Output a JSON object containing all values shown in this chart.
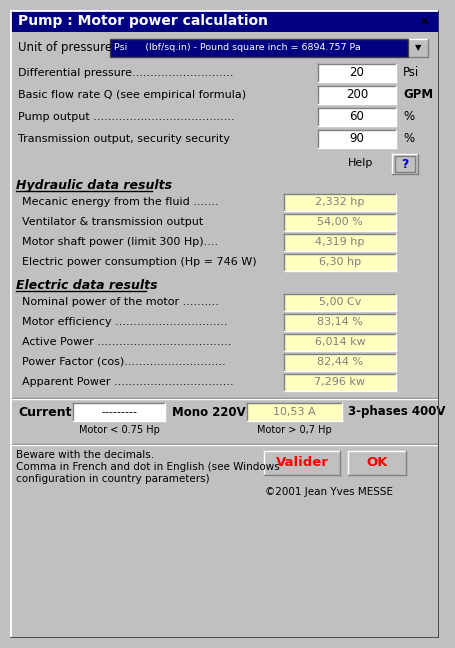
{
  "title": "Pump : Motor power calculation",
  "title_bg": "#000080",
  "title_fg": "#ffffff",
  "bg_color": "#c0c0c0",
  "dropdown_text": "Psi      (lbf/sq.in) - Pound square inch = 6894.757 Pa",
  "dropdown_bg": "#000080",
  "dropdown_fg": "#ffffff",
  "input_fields": [
    {
      "label": "Differential pressure............................",
      "value": "20",
      "unit": "Psi"
    },
    {
      "label": "Basic flow rate Q (see empirical formula)",
      "value": "200",
      "unit": "GPM"
    },
    {
      "label": "Pump output .......................................",
      "value": "60",
      "unit": "%"
    },
    {
      "label": "Transmission output, security security",
      "value": "90",
      "unit": "%"
    }
  ],
  "hydraulic_section": "Hydraulic data results",
  "hydraulic_fields": [
    {
      "label": "Mecanic energy from the fluid .......",
      "value": "2,332 hp"
    },
    {
      "label": "Ventilator & transmission output",
      "value": "54,00 %"
    },
    {
      "label": "Motor shaft power (limit 300 Hp)....",
      "value": "4,319 hp"
    },
    {
      "label": "Electric power consumption (Hp = 746 W)",
      "value": "6,30 hp"
    }
  ],
  "electric_section": "Electric data results",
  "electric_fields": [
    {
      "label": "Nominal power of the motor ..........",
      "value": "5,00 Cv"
    },
    {
      "label": "Motor efficiency ...............................",
      "value": "83,14 %"
    },
    {
      "label": "Active Power .....................................",
      "value": "6,014 kw"
    },
    {
      "label": "Power Factor (cos)............................",
      "value": "82,44 %"
    },
    {
      "label": "Apparent Power .................................",
      "value": "7,296 kw"
    }
  ],
  "current_label": "Current",
  "mono_label": "Mono 220V",
  "mono_value": "---------",
  "mono_sub": "Motor < 0.75 Hp",
  "three_label": "3-phases 400V",
  "three_value": "10,53 A",
  "three_sub": "Motor > 0,7 Hp",
  "warning_line1": "Beware with the decimals.",
  "warning_line2": "Comma in French and dot in English (see Windows",
  "warning_line3": "configuration in country parameters)",
  "copyright": "©2001 Jean Yves MESSE",
  "btn_valider": "Valider",
  "btn_ok": "OK",
  "btn_text_color": "#ff0000",
  "result_bg": "#ffffc0",
  "result_fg": "#808080",
  "input_bg": "#ffffff"
}
